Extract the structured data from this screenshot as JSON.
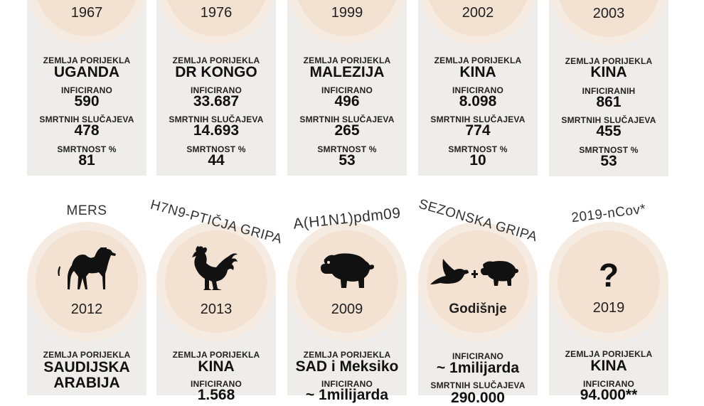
{
  "top": [
    {
      "year": "1967",
      "origin_label": "ZEMLJA PORIJEKLA",
      "origin": "UGANDA",
      "inf_label": "INFICIRANO",
      "inf": "590",
      "death_label": "SMRTNIH SLUČAJEVA",
      "death": "478",
      "mort_label": "SMRTNOST %",
      "mort": "81"
    },
    {
      "year": "1976",
      "origin_label": "ZEMLJA PORIJEKLA",
      "origin": "DR KONGO",
      "inf_label": "INFICIRANO",
      "inf": "33.687",
      "death_label": "SMRTNIH SLUČAJEVA",
      "death": "14.693",
      "mort_label": "SMRTNOST %",
      "mort": "44"
    },
    {
      "year": "1999",
      "origin_label": "ZEMLJA PORIJEKLA",
      "origin": "MALEZIJA",
      "inf_label": "INFICIRANO",
      "inf": "496",
      "death_label": "SMRTNIH SLUČAJEVA",
      "death": "265",
      "mort_label": "SMRTNOST %",
      "mort": "53"
    },
    {
      "year": "2002",
      "origin_label": "ZEMLJA PORIJEKLA",
      "origin": "KINA",
      "inf_label": "INFICIRANO",
      "inf": "8.098",
      "death_label": "SMRTNIH SLUČAJEVA",
      "death": "774",
      "mort_label": "SMRTNOST %",
      "mort": "10"
    },
    {
      "year": "2003",
      "origin_label": "ZEMLJA PORIJEKLA",
      "origin": "KINA",
      "inf_label": "INFICIRANIH",
      "inf": "861",
      "death_label": "SMRTNIH SLUČAJEVA",
      "death": "455",
      "mort_label": "SMRTNOST %",
      "mort": "53"
    }
  ],
  "bottom": [
    {
      "name": "MERS",
      "icon": "camel-icon",
      "year": "2012",
      "origin_label": "ZEMLJA PORIJEKLA",
      "origin1": "SAUDIJSKA",
      "origin2": "ARABIJA"
    },
    {
      "name": "H7N9-PTIČJA GRIPA",
      "icon": "rooster-icon",
      "year": "2013",
      "origin_label": "ZEMLJA PORIJEKLA",
      "origin": "KINA",
      "inf_label": "INFICIRANO",
      "inf": "1.568"
    },
    {
      "name": "A(H1N1)pdm09",
      "icon": "pig-icon",
      "year": "2009",
      "origin_label": "ZEMLJA PORIJEKLA",
      "origin": "SAD i Meksiko",
      "inf_label": "INFICIRANO",
      "inf": "~ 1milijarda"
    },
    {
      "name": "SEZONSKA GRIPA",
      "icon": "bird-pig-icon",
      "year": "Godišnje",
      "inf_label": "INFICIRANO",
      "inf": "~ 1milijarda",
      "death_label": "SMRTNIH SLUČAJEVA",
      "death": "290.000"
    },
    {
      "name": "2019-nCov*",
      "icon": "question-mark-icon",
      "qmark": "?",
      "year": "2019",
      "origin_label": "ZEMLJA PORIJEKLA",
      "origin": "KINA",
      "inf_label": "INFICIRANO",
      "inf": "94.000**"
    }
  ]
}
